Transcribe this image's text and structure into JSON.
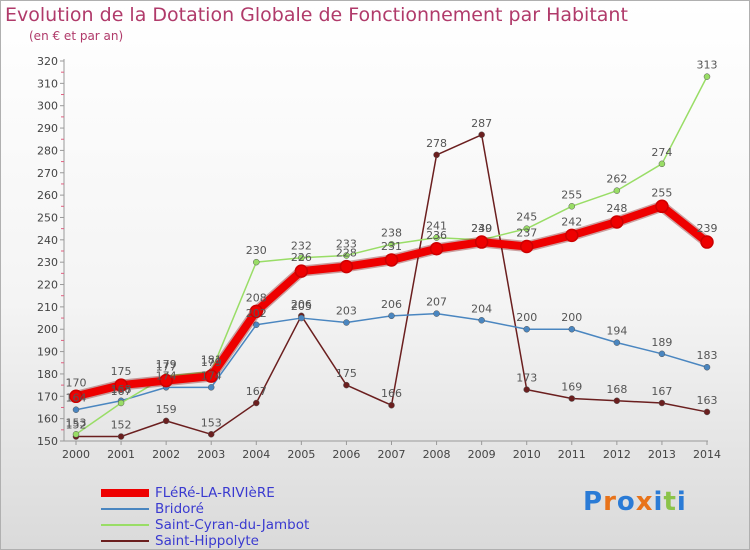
{
  "header": {
    "title": "Evolution de la Dotation Globale de Fonctionnement par Habitant",
    "subtitle": "(en € et par an)"
  },
  "logo": {
    "text": "Proxiti",
    "colors": [
      "#2a7bd6",
      "#e8731a",
      "#2a7bd6",
      "#e8731a",
      "#2a7bd6",
      "#8bc34a",
      "#2a7bd6"
    ]
  },
  "chart_data": {
    "type": "line",
    "title": "Evolution de la Dotation Globale de Fonctionnement par Habitant",
    "subtitle": "(en € et par an)",
    "xlabel": "",
    "ylabel": "",
    "x": [
      "2000",
      "2001",
      "2002",
      "2003",
      "2004",
      "2005",
      "2006",
      "2007",
      "2008",
      "2009",
      "2010",
      "2011",
      "2012",
      "2013",
      "2014"
    ],
    "ylim": [
      150,
      320
    ],
    "yticks": [
      150,
      160,
      170,
      180,
      190,
      200,
      210,
      220,
      230,
      240,
      250,
      260,
      270,
      280,
      290,
      300,
      310,
      320
    ],
    "grid": false,
    "legend": "bottom-left",
    "series": [
      {
        "name": "FLéRé-LA-RIVIèRE",
        "color": "#ee0000",
        "values": [
          170,
          175,
          177,
          179,
          208,
          226,
          228,
          231,
          236,
          239,
          237,
          242,
          248,
          255,
          239
        ]
      },
      {
        "name": "Bridoré",
        "color": "#4a86c0",
        "values": [
          164,
          168,
          174,
          174,
          202,
          205,
          203,
          206,
          207,
          204,
          200,
          200,
          194,
          189,
          183
        ]
      },
      {
        "name": "Saint-Cyran-du-Jambot",
        "color": "#99dd66",
        "values": [
          153,
          167,
          179,
          181,
          230,
          232,
          233,
          238,
          241,
          240,
          245,
          255,
          262,
          274,
          313
        ]
      },
      {
        "name": "Saint-Hippolyte",
        "color": "#6b1f1f",
        "values": [
          152,
          152,
          159,
          153,
          167,
          206,
          175,
          166,
          278,
          287,
          173,
          169,
          168,
          167,
          163
        ]
      }
    ]
  }
}
